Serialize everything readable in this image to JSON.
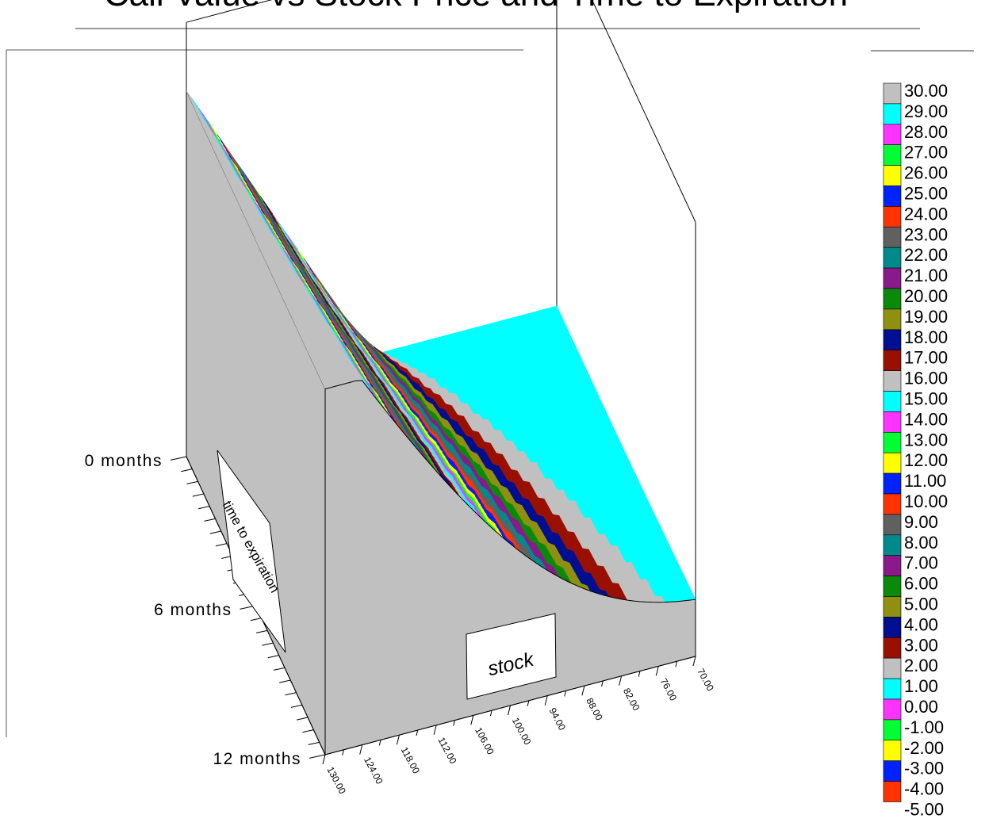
{
  "chart_data": {
    "type": "surface",
    "title": "Call Value vs Stock Price and Time to Expiration",
    "x_axis": {
      "label": "stock",
      "ticks": [
        "130.00",
        "124.00",
        "118.00",
        "112.00",
        "106.00",
        "100.00",
        "94.00",
        "88.00",
        "82.00",
        "76.00",
        "70.00"
      ],
      "range": [
        70,
        130
      ]
    },
    "y_axis": {
      "label": "time to expiration",
      "ticks": [
        "0 months",
        "6 months",
        "12 months"
      ],
      "range_months": [
        0,
        12
      ]
    },
    "z_range": [
      -5,
      30
    ],
    "colormap_levels": [
      {
        "value": "30.00",
        "color": "#c0c0c0"
      },
      {
        "value": "29.00",
        "color": "#00ffff"
      },
      {
        "value": "28.00",
        "color": "#ff33ff"
      },
      {
        "value": "27.00",
        "color": "#00ff33"
      },
      {
        "value": "26.00",
        "color": "#ffff00"
      },
      {
        "value": "25.00",
        "color": "#0022ff"
      },
      {
        "value": "24.00",
        "color": "#ff3300"
      },
      {
        "value": "23.00",
        "color": "#606060"
      },
      {
        "value": "22.00",
        "color": "#008a8a"
      },
      {
        "value": "21.00",
        "color": "#8a1a8a"
      },
      {
        "value": "20.00",
        "color": "#0a8a0a"
      },
      {
        "value": "19.00",
        "color": "#8f8f10"
      },
      {
        "value": "18.00",
        "color": "#000f8f"
      },
      {
        "value": "17.00",
        "color": "#991000"
      },
      {
        "value": "16.00",
        "color": "#c0c0c0"
      },
      {
        "value": "15.00",
        "color": "#00ffff"
      },
      {
        "value": "14.00",
        "color": "#ff33ff"
      },
      {
        "value": "13.00",
        "color": "#00ff33"
      },
      {
        "value": "12.00",
        "color": "#ffff00"
      },
      {
        "value": "11.00",
        "color": "#0022ff"
      },
      {
        "value": "10.00",
        "color": "#ff3300"
      },
      {
        "value": "9.00",
        "color": "#606060"
      },
      {
        "value": "8.00",
        "color": "#008a8a"
      },
      {
        "value": "7.00",
        "color": "#8a1a8a"
      },
      {
        "value": "6.00",
        "color": "#0a8a0a"
      },
      {
        "value": "5.00",
        "color": "#8f8f10"
      },
      {
        "value": "4.00",
        "color": "#000f8f"
      },
      {
        "value": "3.00",
        "color": "#991000"
      },
      {
        "value": "2.00",
        "color": "#c0c0c0"
      },
      {
        "value": "1.00",
        "color": "#00ffff"
      },
      {
        "value": "0.00",
        "color": "#ff33ff"
      },
      {
        "value": "-1.00",
        "color": "#00ff33"
      },
      {
        "value": "-2.00",
        "color": "#ffff00"
      },
      {
        "value": "-3.00",
        "color": "#0022ff"
      },
      {
        "value": "-4.00",
        "color": "#ff3300"
      },
      {
        "value": "-5.00",
        "color": ""
      }
    ],
    "colors": {
      "side_face": "#c0c0c0",
      "flat_region": "#00ffff"
    }
  }
}
